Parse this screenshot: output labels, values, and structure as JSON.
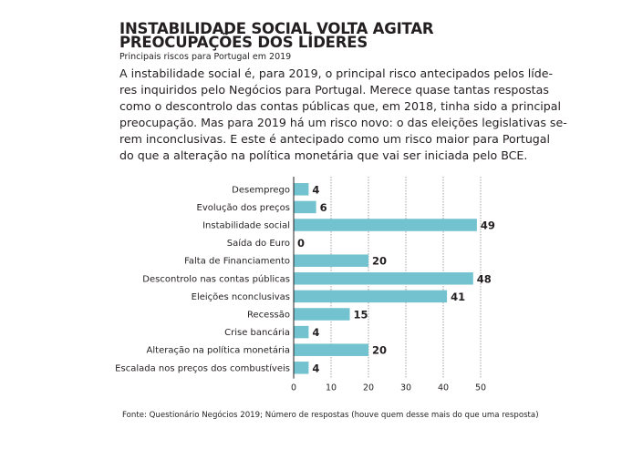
{
  "header": {
    "title_line1": "INSTABILIDADE SOCIAL VOLTA AGITAR",
    "title_line2": "PREOCUPAÇÕES DOS LÍDERES",
    "subtitle": "Principais riscos para Portugal em 2019"
  },
  "intro": {
    "lines": [
      "A instabilidade social é, para 2019, o principal risco antecipados pelos líde-",
      "res inquiridos pelo Negócios para Portugal. Merece quase tantas respostas",
      "como o descontrolo das contas públicas que, em 2018, tinha sido a principal",
      "preocupação. Mas para 2019 há um risco novo: o das eleições legislativas se-",
      "rem inconclusivas. E este é antecipado como um risco maior para Portugal",
      "do que a alteração na política monetária que vai ser iniciada pelo BCE."
    ]
  },
  "chart_data": {
    "type": "bar",
    "orientation": "horizontal",
    "categories": [
      "Desemprego",
      "Evolução dos preços",
      "Instabilidade social",
      "Saída do Euro",
      "Falta de Financiamento",
      "Descontrolo nas contas públicas",
      "Eleições nconclusivas",
      "Recessão",
      "Crise bancária",
      "Alteração na política monetária",
      "Escalada nos preços dos combustíveis"
    ],
    "values": [
      4,
      6,
      49,
      0,
      20,
      48,
      41,
      15,
      4,
      20,
      4
    ],
    "xlim": [
      0,
      50
    ],
    "xticks": [
      0,
      10,
      20,
      30,
      40,
      50
    ],
    "bar_color": "#72c2cf",
    "grid": true
  },
  "source": "Fonte: Questionário Negócios 2019; Número de respostas (houve quem desse mais do  que uma resposta)"
}
